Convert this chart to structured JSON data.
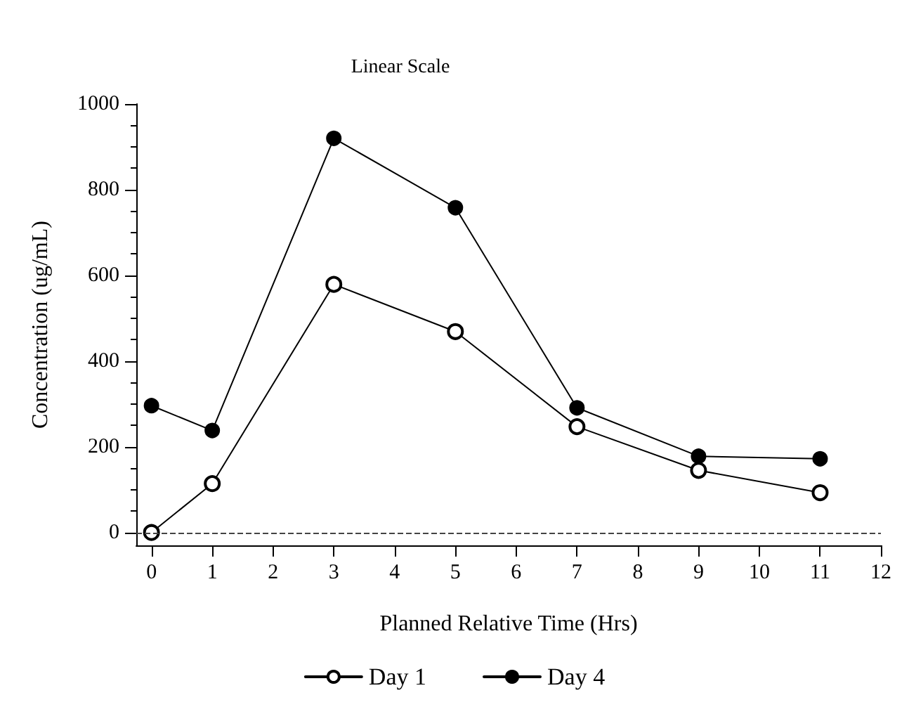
{
  "chart_data": {
    "type": "line",
    "title": "Linear Scale",
    "xlabel": "Planned Relative Time (Hrs)",
    "ylabel": "Concentration (ug/mL)",
    "x": [
      0,
      1,
      3,
      5,
      7,
      9,
      11
    ],
    "series": [
      {
        "name": "Day 1",
        "color": "#000000",
        "marker": "open-circle",
        "values": [
          0,
          114,
          579,
          469,
          247,
          145,
          93
        ]
      },
      {
        "name": "Day 4",
        "color": "#000000",
        "marker": "circle",
        "values": [
          296,
          238,
          920,
          758,
          291,
          178,
          172
        ]
      }
    ],
    "xlim": [
      -0.25,
      12
    ],
    "xticks": [
      0,
      1,
      2,
      3,
      4,
      5,
      6,
      7,
      8,
      9,
      10,
      11,
      12
    ],
    "ylim": [
      -30,
      1000
    ],
    "yticks": [
      0,
      200,
      400,
      600,
      800,
      1000
    ],
    "ref_lines": [
      {
        "axis": "y",
        "value": 0,
        "color": "#444444",
        "line_style": "dashed"
      }
    ],
    "grid": false,
    "legend": "bottom",
    "line_style": "solid"
  }
}
